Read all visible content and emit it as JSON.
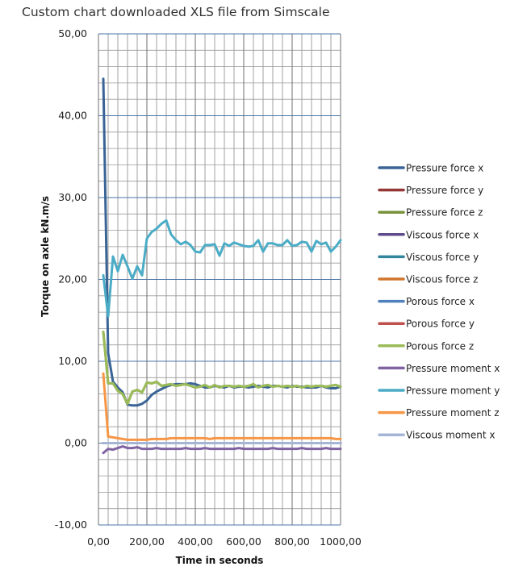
{
  "chart_data": {
    "type": "line",
    "title": "Custom chart downloaded XLS file from Simscale",
    "xlabel": "Time in seconds",
    "ylabel": "Torque on axle kN.m/s",
    "xlim": [
      0,
      1000
    ],
    "ylim": [
      -10,
      50
    ],
    "xticks": [
      "0,00",
      "200,00",
      "400,00",
      "600,00",
      "800,00",
      "1000,00"
    ],
    "yticks": [
      "-10,00",
      "0,00",
      "10,00",
      "20,00",
      "30,00",
      "40,00",
      "50,00"
    ],
    "grid": true,
    "legend_position": "right",
    "x": [
      20,
      40,
      60,
      80,
      100,
      120,
      140,
      160,
      180,
      200,
      220,
      240,
      260,
      280,
      300,
      320,
      340,
      360,
      380,
      400,
      420,
      440,
      460,
      480,
      500,
      520,
      540,
      560,
      580,
      600,
      620,
      640,
      660,
      680,
      700,
      720,
      740,
      760,
      780,
      800,
      820,
      840,
      860,
      880,
      900,
      920,
      940,
      960,
      980,
      1000
    ],
    "series": [
      {
        "name": "Pressure force x",
        "color": "#3A6496",
        "values": [
          44.5,
          11,
          7.5,
          6.8,
          6.2,
          4.7,
          4.6,
          4.6,
          4.8,
          5.2,
          5.9,
          6.3,
          6.6,
          6.9,
          7.1,
          7.2,
          7.2,
          7.2,
          7.3,
          7.2,
          7.0,
          6.8,
          6.8,
          7.0,
          6.9,
          6.8,
          7.0,
          6.8,
          6.9,
          6.9,
          6.8,
          6.9,
          7.0,
          6.9,
          6.8,
          7.0,
          7.0,
          6.9,
          6.8,
          7.0,
          6.9,
          6.9,
          6.8,
          6.8,
          6.8,
          7.0,
          6.8,
          6.7,
          6.7,
          6.9
        ]
      },
      {
        "name": "Pressure force y",
        "color": "#953735",
        "values": [
          0,
          0,
          0,
          0,
          0,
          0,
          0,
          0,
          0,
          0,
          0,
          0,
          0,
          0,
          0,
          0,
          0,
          0,
          0,
          0,
          0,
          0,
          0,
          0,
          0,
          0,
          0,
          0,
          0,
          0,
          0,
          0,
          0,
          0,
          0,
          0,
          0,
          0,
          0,
          0,
          0,
          0,
          0,
          0,
          0,
          0,
          0,
          0,
          0,
          0
        ]
      },
      {
        "name": "Pressure force z",
        "color": "#77933C",
        "values": [
          13.6,
          7.3,
          7.3,
          6.4,
          6.0,
          4.8,
          6.3,
          6.5,
          6.2,
          7.4,
          7.3,
          7.5,
          7.0,
          7.1,
          7.2,
          7.0,
          7.1,
          7.2,
          7.0,
          6.8,
          6.9,
          7.1,
          6.8,
          7.1,
          6.8,
          7.0,
          7.0,
          6.9,
          7.0,
          6.9,
          7.0,
          7.2,
          6.8,
          7.0,
          7.1,
          6.9,
          7.0,
          6.9,
          7.0,
          6.9,
          7.0,
          6.8,
          7.0,
          6.9,
          7.0,
          7.0,
          6.9,
          7.0,
          7.1,
          6.9
        ]
      },
      {
        "name": "Viscous force x",
        "color": "#5F4B8B",
        "values": [
          0,
          0,
          0,
          0,
          0,
          0,
          0,
          0,
          0,
          0,
          0,
          0,
          0,
          0,
          0,
          0,
          0,
          0,
          0,
          0,
          0,
          0,
          0,
          0,
          0,
          0,
          0,
          0,
          0,
          0,
          0,
          0,
          0,
          0,
          0,
          0,
          0,
          0,
          0,
          0,
          0,
          0,
          0,
          0,
          0,
          0,
          0,
          0,
          0,
          0
        ]
      },
      {
        "name": "Viscous force y",
        "color": "#31859C",
        "values": [
          0,
          0,
          0,
          0,
          0,
          0,
          0,
          0,
          0,
          0,
          0,
          0,
          0,
          0,
          0,
          0,
          0,
          0,
          0,
          0,
          0,
          0,
          0,
          0,
          0,
          0,
          0,
          0,
          0,
          0,
          0,
          0,
          0,
          0,
          0,
          0,
          0,
          0,
          0,
          0,
          0,
          0,
          0,
          0,
          0,
          0,
          0,
          0,
          0,
          0
        ]
      },
      {
        "name": "Viscous force z",
        "color": "#D0762F",
        "values": [
          0,
          0,
          0,
          0,
          0,
          0,
          0,
          0,
          0,
          0,
          0,
          0,
          0,
          0,
          0,
          0,
          0,
          0,
          0,
          0,
          0,
          0,
          0,
          0,
          0,
          0,
          0,
          0,
          0,
          0,
          0,
          0,
          0,
          0,
          0,
          0,
          0,
          0,
          0,
          0,
          0,
          0,
          0,
          0,
          0,
          0,
          0,
          0,
          0,
          0
        ]
      },
      {
        "name": "Porous force x",
        "color": "#4F81BD",
        "values": [
          0,
          0,
          0,
          0,
          0,
          0,
          0,
          0,
          0,
          0,
          0,
          0,
          0,
          0,
          0,
          0,
          0,
          0,
          0,
          0,
          0,
          0,
          0,
          0,
          0,
          0,
          0,
          0,
          0,
          0,
          0,
          0,
          0,
          0,
          0,
          0,
          0,
          0,
          0,
          0,
          0,
          0,
          0,
          0,
          0,
          0,
          0,
          0,
          0,
          0
        ]
      },
      {
        "name": "Porous force y",
        "color": "#C0504D",
        "values": [
          0,
          0,
          0,
          0,
          0,
          0,
          0,
          0,
          0,
          0,
          0,
          0,
          0,
          0,
          0,
          0,
          0,
          0,
          0,
          0,
          0,
          0,
          0,
          0,
          0,
          0,
          0,
          0,
          0,
          0,
          0,
          0,
          0,
          0,
          0,
          0,
          0,
          0,
          0,
          0,
          0,
          0,
          0,
          0,
          0,
          0,
          0,
          0,
          0,
          0
        ]
      },
      {
        "name": "Porous force z",
        "color": "#9BBB59",
        "values": [
          13.6,
          7.3,
          7.3,
          6.4,
          6.0,
          4.8,
          6.3,
          6.5,
          6.2,
          7.4,
          7.3,
          7.5,
          7.0,
          7.1,
          7.2,
          7.0,
          7.1,
          7.2,
          7.0,
          6.8,
          6.9,
          7.1,
          6.8,
          7.1,
          6.8,
          7.0,
          7.0,
          6.9,
          7.0,
          6.9,
          7.0,
          7.2,
          6.8,
          7.0,
          7.1,
          6.9,
          7.0,
          6.9,
          7.0,
          6.9,
          7.0,
          6.8,
          7.0,
          6.9,
          7.0,
          7.0,
          6.9,
          7.0,
          7.1,
          6.9
        ]
      },
      {
        "name": "Pressure moment x",
        "color": "#8064A2",
        "values": [
          -1.2,
          -0.7,
          -0.8,
          -0.6,
          -0.4,
          -0.6,
          -0.6,
          -0.5,
          -0.7,
          -0.7,
          -0.7,
          -0.6,
          -0.7,
          -0.7,
          -0.7,
          -0.7,
          -0.7,
          -0.6,
          -0.7,
          -0.7,
          -0.7,
          -0.6,
          -0.7,
          -0.7,
          -0.7,
          -0.7,
          -0.7,
          -0.7,
          -0.6,
          -0.7,
          -0.7,
          -0.7,
          -0.7,
          -0.7,
          -0.7,
          -0.6,
          -0.7,
          -0.7,
          -0.7,
          -0.7,
          -0.7,
          -0.6,
          -0.7,
          -0.7,
          -0.7,
          -0.7,
          -0.6,
          -0.7,
          -0.7,
          -0.7
        ]
      },
      {
        "name": "Pressure moment y",
        "color": "#4BACC6",
        "values": [
          20.5,
          15.5,
          22.8,
          21,
          23,
          21.6,
          20.1,
          21.6,
          20.5,
          25,
          25.8,
          26.2,
          26.8,
          27.2,
          25.5,
          24.8,
          24.3,
          24.6,
          24.2,
          23.4,
          23.3,
          24.2,
          24.2,
          24.3,
          22.9,
          24.4,
          24.1,
          24.5,
          24.3,
          24.1,
          24.0,
          24.1,
          24.8,
          23.4,
          24.4,
          24.4,
          24.2,
          24.2,
          24.8,
          24.1,
          24.2,
          24.6,
          24.5,
          23.4,
          24.7,
          24.3,
          24.5,
          23.4,
          24.0,
          24.8
        ]
      },
      {
        "name": "Pressure moment z",
        "color": "#F79646",
        "values": [
          8.5,
          0.8,
          0.7,
          0.6,
          0.5,
          0.4,
          0.4,
          0.4,
          0.4,
          0.4,
          0.5,
          0.5,
          0.5,
          0.5,
          0.6,
          0.6,
          0.6,
          0.6,
          0.6,
          0.6,
          0.6,
          0.6,
          0.5,
          0.6,
          0.6,
          0.6,
          0.6,
          0.6,
          0.6,
          0.6,
          0.6,
          0.6,
          0.6,
          0.6,
          0.6,
          0.6,
          0.6,
          0.6,
          0.6,
          0.6,
          0.6,
          0.6,
          0.6,
          0.6,
          0.6,
          0.6,
          0.6,
          0.6,
          0.5,
          0.5
        ]
      },
      {
        "name": "Viscous moment x",
        "color": "#A5B5D6",
        "values": [
          0,
          0,
          0,
          0,
          0,
          0,
          0,
          0,
          0,
          0,
          0,
          0,
          0,
          0,
          0,
          0,
          0,
          0,
          0,
          0,
          0,
          0,
          0,
          0,
          0,
          0,
          0,
          0,
          0,
          0,
          0,
          0,
          0,
          0,
          0,
          0,
          0,
          0,
          0,
          0,
          0,
          0,
          0,
          0,
          0,
          0,
          0,
          0,
          0,
          0
        ]
      }
    ]
  }
}
